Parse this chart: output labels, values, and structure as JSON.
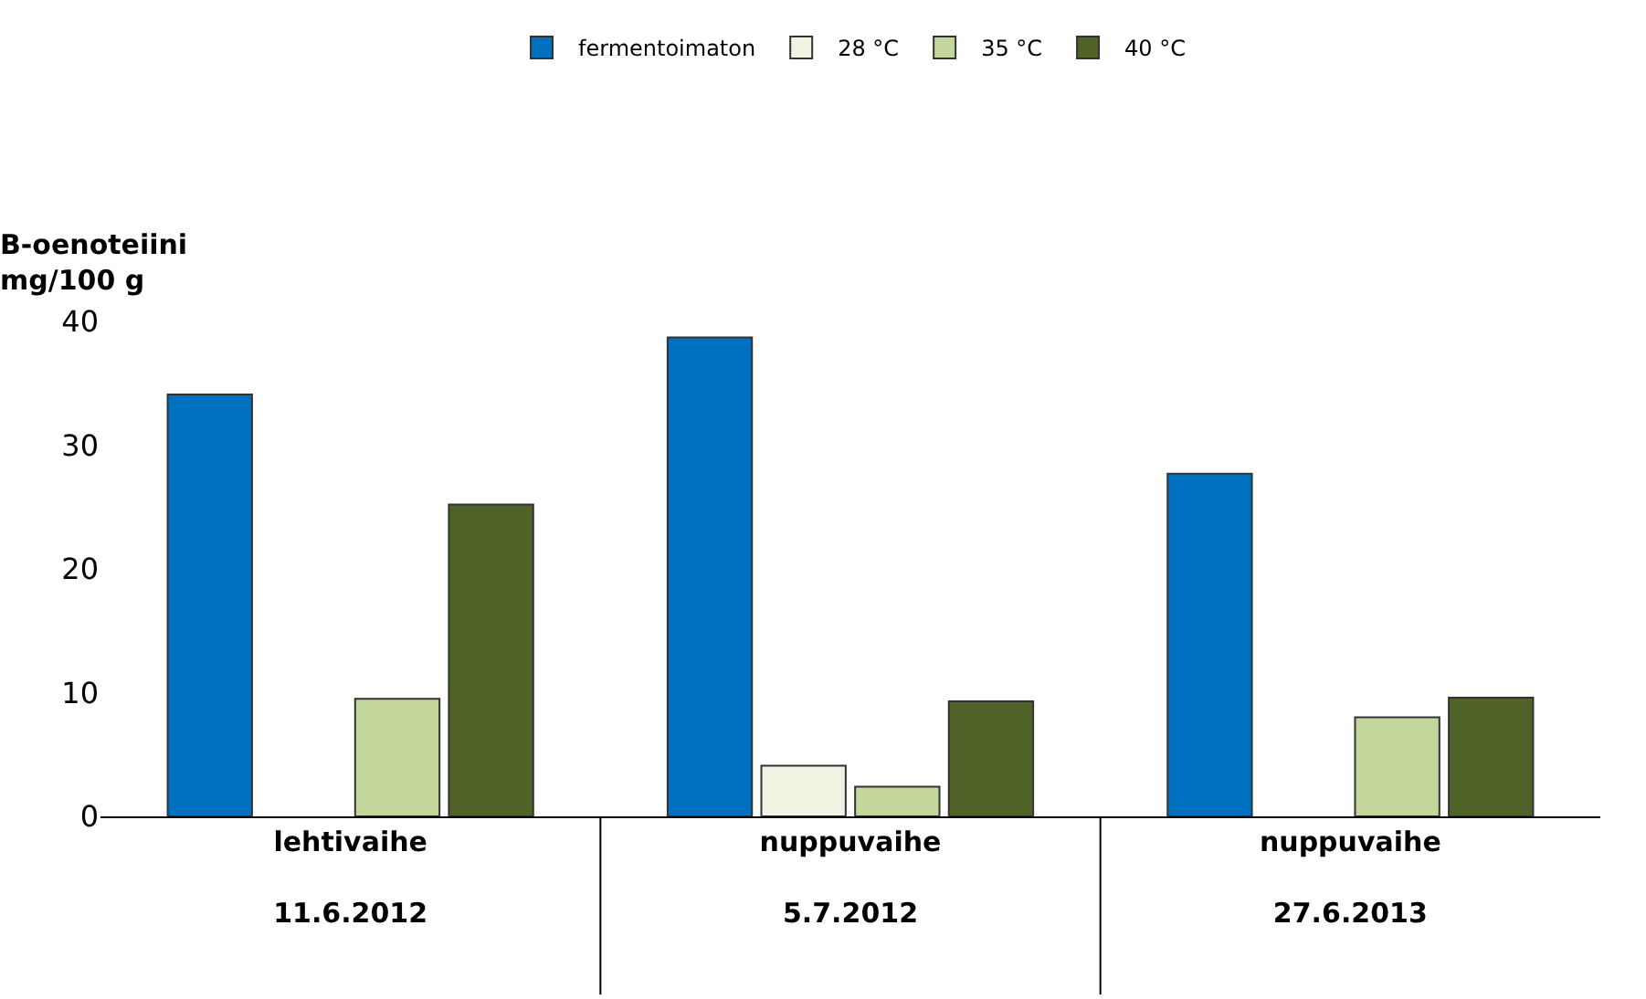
{
  "chart_data": {
    "type": "bar",
    "ylabel": "B-oenoteiini\nmg/100 g",
    "categories": [
      "lehtivaihe\n\n11.6.2012",
      "nuppuvaihe\n\n5.7.2012",
      "nuppuvaihe\n\n27.6.2013"
    ],
    "series": [
      {
        "name": "fermentoimaton",
        "color": "#0070c0",
        "values": [
          34.1,
          38.7,
          27.7
        ]
      },
      {
        "name": "28 °C",
        "color": "#eef3e2",
        "values": [
          null,
          4.1,
          null
        ]
      },
      {
        "name": "35 °C",
        "color": "#c3d69b",
        "values": [
          9.5,
          2.4,
          8.0
        ]
      },
      {
        "name": "40 °C",
        "color": "#4f6228",
        "values": [
          25.2,
          9.3,
          9.6
        ]
      }
    ],
    "ylim": [
      0,
      40
    ],
    "yticks": [
      0,
      10,
      20,
      30,
      40
    ],
    "legend": "top"
  }
}
